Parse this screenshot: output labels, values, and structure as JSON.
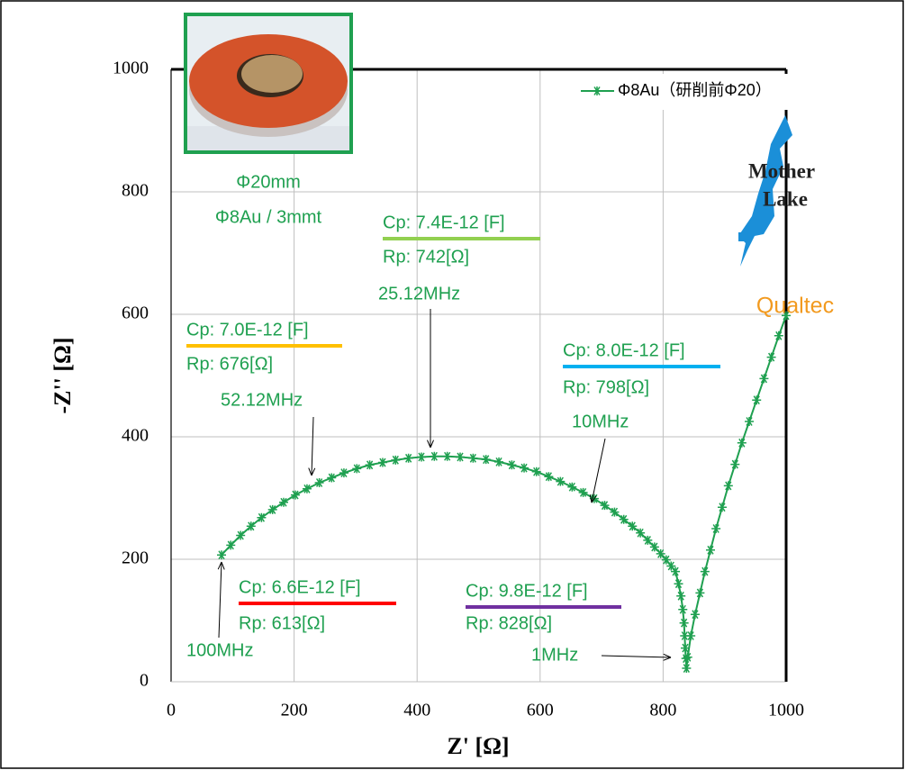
{
  "chart_data": {
    "type": "line",
    "x_label": "Z' [Ω]",
    "y_label": "-Z'' [Ω]",
    "xlim": [
      0,
      1000
    ],
    "xticks": [
      0,
      200,
      400,
      600,
      800,
      1000
    ],
    "ylim": [
      0,
      1000
    ],
    "yticks": [
      0,
      200,
      400,
      600,
      800,
      1000
    ],
    "grid": true,
    "legend": "top right",
    "x": [
      82,
      97,
      113,
      130,
      147,
      165,
      183,
      202,
      221,
      241,
      261,
      281,
      302,
      323,
      344,
      365,
      386,
      407,
      428,
      449,
      470,
      491,
      512,
      533,
      554,
      574,
      594,
      614,
      633,
      652,
      670,
      688,
      705,
      721,
      736,
      750,
      763,
      775,
      786,
      796,
      805,
      813,
      820,
      825,
      829,
      832,
      834,
      835,
      836,
      837,
      838,
      840,
      845,
      852,
      860,
      868,
      877,
      886,
      896,
      906,
      917,
      928,
      940,
      952,
      964,
      976,
      988,
      1000
    ],
    "series": [
      {
        "name": "Φ8Au（研削前Φ20）",
        "color": "#1fa050",
        "values": [
          207,
          223,
          239,
          254,
          268,
          281,
          293,
          305,
          315,
          325,
          333,
          341,
          348,
          354,
          358,
          362,
          365,
          367,
          368,
          368,
          367,
          365,
          363,
          359,
          354,
          349,
          343,
          335,
          327,
          318,
          309,
          299,
          288,
          277,
          265,
          254,
          243,
          231,
          220,
          209,
          199,
          189,
          180,
          160,
          140,
          118,
          96,
          75,
          55,
          38,
          22,
          40,
          75,
          110,
          145,
          180,
          215,
          250,
          285,
          320,
          355,
          390,
          425,
          460,
          495,
          530,
          565,
          598
        ]
      }
    ],
    "photo_caption": [
      "Φ20mm",
      "Φ8Au / 3mmt"
    ],
    "annotations": [
      {
        "cp": "Cp: 7.4E-12 [F]",
        "rp": "Rp: 742[Ω]",
        "frequency": "25.12MHz",
        "color": "#92d050"
      },
      {
        "cp": "Cp: 7.0E-12 [F]",
        "rp": "Rp: 676[Ω]",
        "frequency": "52.12MHz",
        "color": "#ffc000"
      },
      {
        "cp": "Cp: 8.0E-12 [F]",
        "rp": "Rp: 798[Ω]",
        "frequency": "10MHz",
        "color": "#00b0f0"
      },
      {
        "cp": "Cp: 6.6E-12 [F]",
        "rp": "Rp: 613[Ω]",
        "frequency": "100MHz",
        "color": "#ff0000"
      },
      {
        "cp": "Cp: 9.8E-12 [F]",
        "rp": "Rp: 828[Ω]",
        "frequency": "1MHz",
        "color": "#7030a0"
      }
    ],
    "logo": [
      "Mother",
      "Lake",
      "Qualtec"
    ]
  }
}
